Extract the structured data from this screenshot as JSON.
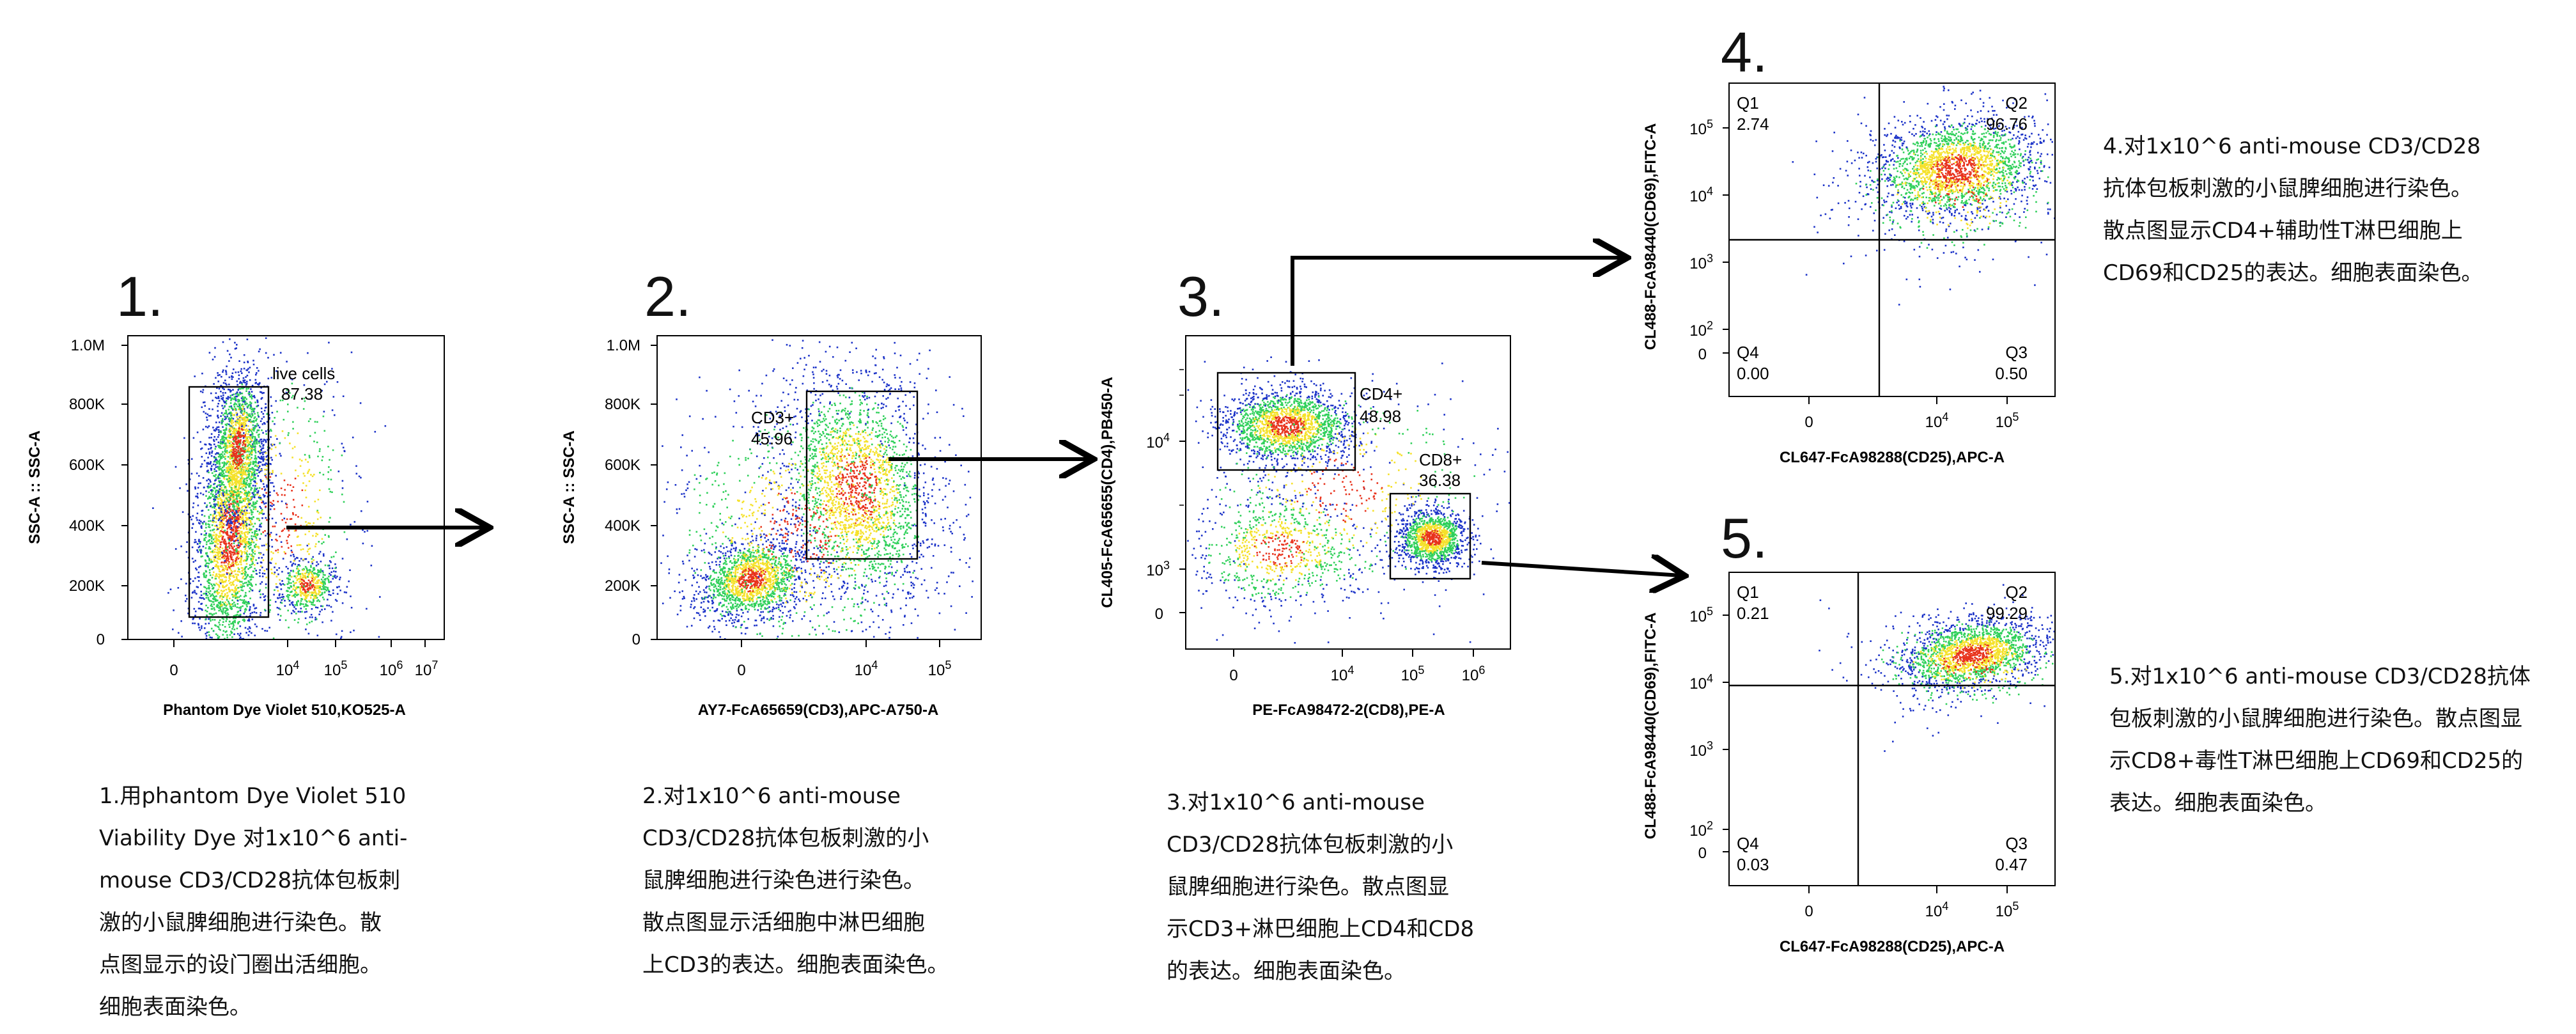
{
  "colors": {
    "low": "#1b32c8",
    "mid": "#2fd05a",
    "high": "#f5e12a",
    "peak": "#e8321c",
    "line": "#000000"
  },
  "panels": [
    {
      "number": "1.",
      "caption": "1.用phantom Dye Violet 510\nViability Dye 对1x10^6 anti-\nmouse CD3/CD28抗体包板刺\n激的小鼠脾细胞进行染色。散\n点图显示的设门圈出活细胞。\n细胞表面染色。"
    },
    {
      "number": "2.",
      "caption": "2.对1x10^6 anti-mouse\nCD3/CD28抗体包板刺激的小\n鼠脾细胞进行染色进行染色。\n散点图显示活细胞中淋巴细胞\n上CD3的表达。细胞表面染色。"
    },
    {
      "number": "3.",
      "caption": "3.对1x10^6 anti-mouse\nCD3/CD28抗体包板刺激的小\n鼠脾细胞进行染色。散点图显\n示CD3+淋巴细胞上CD4和CD8\n的表达。细胞表面染色。"
    },
    {
      "number": "4.",
      "caption": "4.对1x10^6  anti-mouse  CD3/CD28\n抗体包板刺激的小鼠脾细胞进行染色。\n散点图显示CD4+辅助性T淋巴细胞上\nCD69和CD25的表达。细胞表面染色。"
    },
    {
      "number": "5.",
      "caption": "5.对1x10^6  anti-mouse  CD3/CD28抗体\n包板刺激的小鼠脾细胞进行染色。散点图显\n示CD8+毒性T淋巴细胞上CD69和CD25的\n表达。细胞表面染色。"
    }
  ],
  "chart_data": [
    {
      "type": "scatter",
      "panel": "1",
      "xlabel": "Phantom Dye Violet 510,KO525-A",
      "ylabel": "SSC-A :: SSC-A",
      "x_ticks": [
        "0",
        "10^4",
        "10^5",
        "10^6",
        "10^7"
      ],
      "y_ticks": [
        "0",
        "200K",
        "400K",
        "600K",
        "800K",
        "1.0M"
      ],
      "gates": [
        {
          "name": "live cells",
          "percent": "87.38"
        }
      ]
    },
    {
      "type": "scatter",
      "panel": "2",
      "xlabel": "AY7-FcA65659(CD3),APC-A750-A",
      "ylabel": "SSC-A :: SSC-A",
      "x_ticks": [
        "0",
        "10^4",
        "10^5"
      ],
      "y_ticks": [
        "0",
        "200K",
        "400K",
        "600K",
        "800K",
        "1.0M"
      ],
      "gates": [
        {
          "name": "CD3+",
          "percent": "45.96"
        }
      ]
    },
    {
      "type": "scatter",
      "panel": "3",
      "xlabel": "PE-FcA98472-2(CD8),PE-A",
      "ylabel": "CL405-FcA65655(CD4),PB450-A",
      "x_ticks": [
        "0",
        "10^4",
        "10^5",
        "10^6"
      ],
      "y_ticks": [
        "0",
        "10^3",
        "10^4"
      ],
      "gates": [
        {
          "name": "CD4+",
          "percent": "48.98"
        },
        {
          "name": "CD8+",
          "percent": "36.38"
        }
      ]
    },
    {
      "type": "scatter",
      "panel": "4",
      "xlabel": "CL647-FcA98288(CD25),APC-A",
      "ylabel": "CL488-FcA98440(CD69),FITC-A",
      "x_ticks": [
        "0",
        "10^4",
        "10^5"
      ],
      "y_ticks": [
        "0",
        "10^2",
        "10^3",
        "10^4",
        "10^5"
      ],
      "quadrants": [
        {
          "name": "Q1",
          "percent": "2.74"
        },
        {
          "name": "Q2",
          "percent": "96.76"
        },
        {
          "name": "Q3",
          "percent": "0.50"
        },
        {
          "name": "Q4",
          "percent": "0.00"
        }
      ]
    },
    {
      "type": "scatter",
      "panel": "5",
      "xlabel": "CL647-FcA98288(CD25),APC-A",
      "ylabel": "CL488-FcA98440(CD69),FITC-A",
      "x_ticks": [
        "0",
        "10^4",
        "10^5"
      ],
      "y_ticks": [
        "0",
        "10^2",
        "10^3",
        "10^4",
        "10^5"
      ],
      "quadrants": [
        {
          "name": "Q1",
          "percent": "0.21"
        },
        {
          "name": "Q2",
          "percent": "99.29"
        },
        {
          "name": "Q3",
          "percent": "0.47"
        },
        {
          "name": "Q4",
          "percent": "0.03"
        }
      ]
    }
  ]
}
